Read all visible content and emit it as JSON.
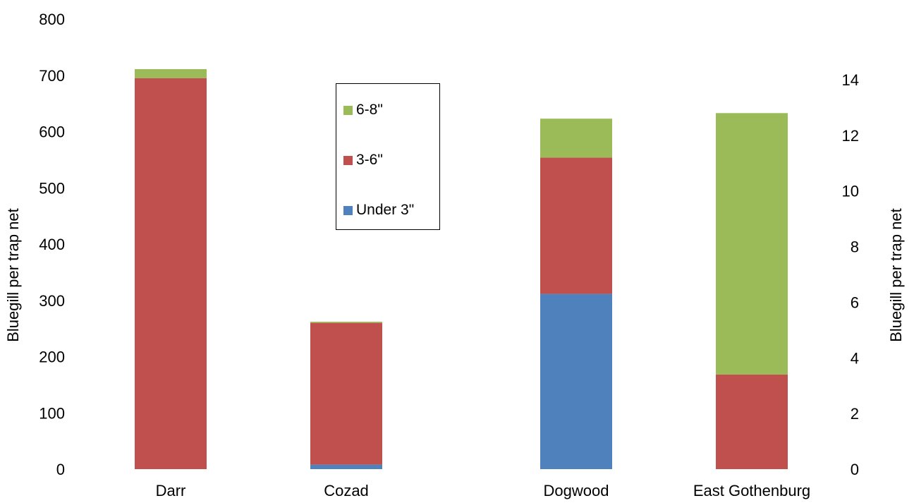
{
  "chart_data": {
    "type": "bar",
    "stacked": true,
    "categories": [
      "Darr",
      "Cozad",
      "Dogwood",
      "East Gothenburg"
    ],
    "axes": {
      "left": {
        "label": "Bluegill per trap net",
        "ylim": [
          0,
          800
        ],
        "ticks": [
          0,
          100,
          200,
          300,
          400,
          500,
          600,
          700,
          800
        ],
        "applies_to": [
          "Darr",
          "Cozad"
        ]
      },
      "right": {
        "label": "Bluegill per trap net",
        "ylim": [
          0,
          14
        ],
        "ticks": [
          0,
          2,
          4,
          6,
          8,
          10,
          12,
          14
        ],
        "applies_to": [
          "Dogwood",
          "East Gothenburg"
        ]
      }
    },
    "series": [
      {
        "name": "Under 3\"",
        "color": "#4F81BD",
        "values": [
          0,
          8,
          6.3,
          0
        ]
      },
      {
        "name": "3-6\"",
        "color": "#C0504D",
        "values": [
          695,
          252,
          4.9,
          3.4
        ]
      },
      {
        "name": "6-8\"",
        "color": "#9BBB59",
        "values": [
          16,
          2,
          1.4,
          9.4
        ]
      }
    ],
    "legend": {
      "placement": "top-center",
      "order": [
        "6-8\"",
        "3-6\"",
        "Under 3\""
      ]
    },
    "grid": false
  }
}
